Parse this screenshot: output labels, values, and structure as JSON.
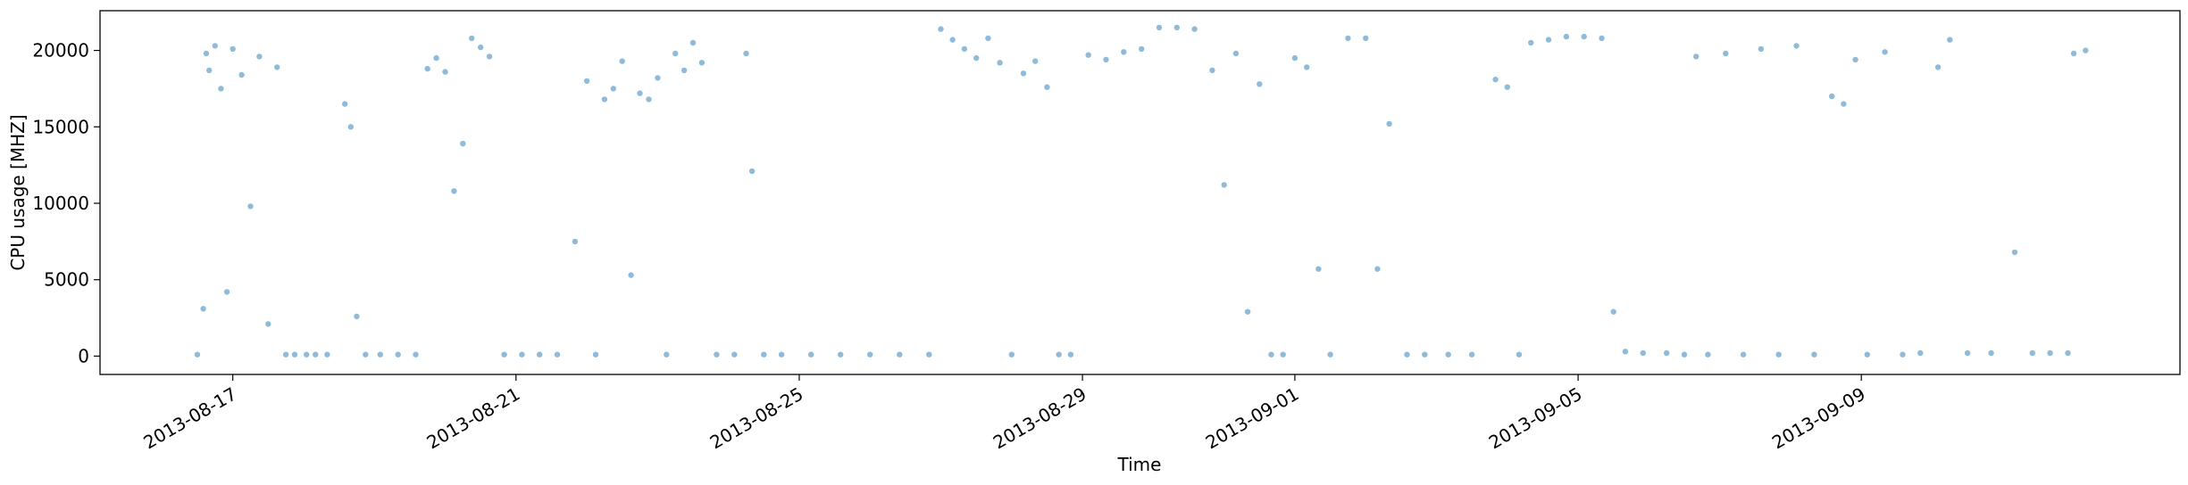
{
  "chart_data": {
    "type": "scatter",
    "title": "",
    "xlabel": "Time",
    "ylabel": "CPU usage [MHZ]",
    "x_axis": "date",
    "xlim": [
      "2013-08-15T03:00",
      "2013-09-13T12:00"
    ],
    "ylim": [
      -1200,
      22600
    ],
    "x_ticks": [
      {
        "date": "2013-08-17T00:00",
        "label": "2013-08-17"
      },
      {
        "date": "2013-08-21T00:00",
        "label": "2013-08-21"
      },
      {
        "date": "2013-08-25T00:00",
        "label": "2013-08-25"
      },
      {
        "date": "2013-08-29T00:00",
        "label": "2013-08-29"
      },
      {
        "date": "2013-09-01T00:00",
        "label": "2013-09-01"
      },
      {
        "date": "2013-09-05T00:00",
        "label": "2013-09-05"
      },
      {
        "date": "2013-09-09T00:00",
        "label": "2013-09-09"
      }
    ],
    "y_ticks": [
      0,
      5000,
      10000,
      15000,
      20000
    ],
    "grid": false,
    "legend": "none",
    "marker_color": "#1f77b4",
    "series": [
      {
        "points": [
          [
            "2013-08-16T12:00",
            100
          ],
          [
            "2013-08-16T14:00",
            3100
          ],
          [
            "2013-08-16T15:00",
            19800
          ],
          [
            "2013-08-16T16:00",
            18700
          ],
          [
            "2013-08-16T18:00",
            20300
          ],
          [
            "2013-08-16T20:00",
            17500
          ],
          [
            "2013-08-16T22:00",
            4200
          ],
          [
            "2013-08-17T00:00",
            20100
          ],
          [
            "2013-08-17T03:00",
            18400
          ],
          [
            "2013-08-17T06:00",
            9800
          ],
          [
            "2013-08-17T09:00",
            19600
          ],
          [
            "2013-08-17T12:00",
            2100
          ],
          [
            "2013-08-17T15:00",
            18900
          ],
          [
            "2013-08-17T18:00",
            100
          ],
          [
            "2013-08-17T21:00",
            100
          ],
          [
            "2013-08-18T01:00",
            100
          ],
          [
            "2013-08-18T04:00",
            100
          ],
          [
            "2013-08-18T08:00",
            100
          ],
          [
            "2013-08-18T14:00",
            16500
          ],
          [
            "2013-08-18T16:00",
            15000
          ],
          [
            "2013-08-18T18:00",
            2600
          ],
          [
            "2013-08-18T21:00",
            100
          ],
          [
            "2013-08-19T02:00",
            100
          ],
          [
            "2013-08-19T08:00",
            100
          ],
          [
            "2013-08-19T14:00",
            100
          ],
          [
            "2013-08-19T18:00",
            18800
          ],
          [
            "2013-08-19T21:00",
            19500
          ],
          [
            "2013-08-20T00:00",
            18600
          ],
          [
            "2013-08-20T03:00",
            10800
          ],
          [
            "2013-08-20T06:00",
            13900
          ],
          [
            "2013-08-20T09:00",
            20800
          ],
          [
            "2013-08-20T12:00",
            20200
          ],
          [
            "2013-08-20T15:00",
            19600
          ],
          [
            "2013-08-20T20:00",
            100
          ],
          [
            "2013-08-21T02:00",
            100
          ],
          [
            "2013-08-21T08:00",
            100
          ],
          [
            "2013-08-21T14:00",
            100
          ],
          [
            "2013-08-21T20:00",
            7500
          ],
          [
            "2013-08-22T00:00",
            18000
          ],
          [
            "2013-08-22T03:00",
            100
          ],
          [
            "2013-08-22T06:00",
            16800
          ],
          [
            "2013-08-22T09:00",
            17500
          ],
          [
            "2013-08-22T12:00",
            19300
          ],
          [
            "2013-08-22T15:00",
            5300
          ],
          [
            "2013-08-22T18:00",
            17200
          ],
          [
            "2013-08-22T21:00",
            16800
          ],
          [
            "2013-08-23T00:00",
            18200
          ],
          [
            "2013-08-23T03:00",
            100
          ],
          [
            "2013-08-23T06:00",
            19800
          ],
          [
            "2013-08-23T09:00",
            18700
          ],
          [
            "2013-08-23T12:00",
            20500
          ],
          [
            "2013-08-23T15:00",
            19200
          ],
          [
            "2013-08-23T20:00",
            100
          ],
          [
            "2013-08-24T02:00",
            100
          ],
          [
            "2013-08-24T06:00",
            19800
          ],
          [
            "2013-08-24T08:00",
            12100
          ],
          [
            "2013-08-24T12:00",
            100
          ],
          [
            "2013-08-24T18:00",
            100
          ],
          [
            "2013-08-25T04:00",
            100
          ],
          [
            "2013-08-25T14:00",
            100
          ],
          [
            "2013-08-26T00:00",
            100
          ],
          [
            "2013-08-26T10:00",
            100
          ],
          [
            "2013-08-26T20:00",
            100
          ],
          [
            "2013-08-27T00:00",
            21400
          ],
          [
            "2013-08-27T04:00",
            20700
          ],
          [
            "2013-08-27T08:00",
            20100
          ],
          [
            "2013-08-27T12:00",
            19500
          ],
          [
            "2013-08-27T16:00",
            20800
          ],
          [
            "2013-08-27T20:00",
            19200
          ],
          [
            "2013-08-28T00:00",
            100
          ],
          [
            "2013-08-28T04:00",
            18500
          ],
          [
            "2013-08-28T08:00",
            19300
          ],
          [
            "2013-08-28T12:00",
            17600
          ],
          [
            "2013-08-28T16:00",
            100
          ],
          [
            "2013-08-28T20:00",
            100
          ],
          [
            "2013-08-29T02:00",
            19700
          ],
          [
            "2013-08-29T08:00",
            19400
          ],
          [
            "2013-08-29T14:00",
            19900
          ],
          [
            "2013-08-29T20:00",
            20100
          ],
          [
            "2013-08-30T02:00",
            21500
          ],
          [
            "2013-08-30T08:00",
            21500
          ],
          [
            "2013-08-30T14:00",
            21400
          ],
          [
            "2013-08-30T20:00",
            18700
          ],
          [
            "2013-08-31T00:00",
            11200
          ],
          [
            "2013-08-31T04:00",
            19800
          ],
          [
            "2013-08-31T08:00",
            2900
          ],
          [
            "2013-08-31T12:00",
            17800
          ],
          [
            "2013-08-31T16:00",
            100
          ],
          [
            "2013-08-31T20:00",
            100
          ],
          [
            "2013-09-01T00:00",
            19500
          ],
          [
            "2013-09-01T04:00",
            18900
          ],
          [
            "2013-09-01T08:00",
            5700
          ],
          [
            "2013-09-01T12:00",
            100
          ],
          [
            "2013-09-01T18:00",
            20800
          ],
          [
            "2013-09-02T00:00",
            20800
          ],
          [
            "2013-09-02T04:00",
            5700
          ],
          [
            "2013-09-02T08:00",
            15200
          ],
          [
            "2013-09-02T14:00",
            100
          ],
          [
            "2013-09-02T20:00",
            100
          ],
          [
            "2013-09-03T04:00",
            100
          ],
          [
            "2013-09-03T12:00",
            100
          ],
          [
            "2013-09-03T20:00",
            18100
          ],
          [
            "2013-09-04T00:00",
            17600
          ],
          [
            "2013-09-04T04:00",
            100
          ],
          [
            "2013-09-04T08:00",
            20500
          ],
          [
            "2013-09-04T14:00",
            20700
          ],
          [
            "2013-09-04T20:00",
            20900
          ],
          [
            "2013-09-05T02:00",
            20900
          ],
          [
            "2013-09-05T08:00",
            20800
          ],
          [
            "2013-09-05T12:00",
            2900
          ],
          [
            "2013-09-05T16:00",
            300
          ],
          [
            "2013-09-05T22:00",
            200
          ],
          [
            "2013-09-06T06:00",
            200
          ],
          [
            "2013-09-06T12:00",
            100
          ],
          [
            "2013-09-06T16:00",
            19600
          ],
          [
            "2013-09-06T20:00",
            100
          ],
          [
            "2013-09-07T02:00",
            19800
          ],
          [
            "2013-09-07T08:00",
            100
          ],
          [
            "2013-09-07T14:00",
            20100
          ],
          [
            "2013-09-07T20:00",
            100
          ],
          [
            "2013-09-08T02:00",
            20300
          ],
          [
            "2013-09-08T08:00",
            100
          ],
          [
            "2013-09-08T14:00",
            17000
          ],
          [
            "2013-09-08T18:00",
            16500
          ],
          [
            "2013-09-08T22:00",
            19400
          ],
          [
            "2013-09-09T02:00",
            100
          ],
          [
            "2013-09-09T08:00",
            19900
          ],
          [
            "2013-09-09T14:00",
            100
          ],
          [
            "2013-09-09T20:00",
            200
          ],
          [
            "2013-09-10T02:00",
            18900
          ],
          [
            "2013-09-10T06:00",
            20700
          ],
          [
            "2013-09-10T12:00",
            200
          ],
          [
            "2013-09-10T20:00",
            200
          ],
          [
            "2013-09-11T04:00",
            6800
          ],
          [
            "2013-09-11T10:00",
            200
          ],
          [
            "2013-09-11T16:00",
            200
          ],
          [
            "2013-09-11T22:00",
            200
          ],
          [
            "2013-09-12T00:00",
            19800
          ],
          [
            "2013-09-12T04:00",
            20000
          ]
        ]
      }
    ]
  }
}
